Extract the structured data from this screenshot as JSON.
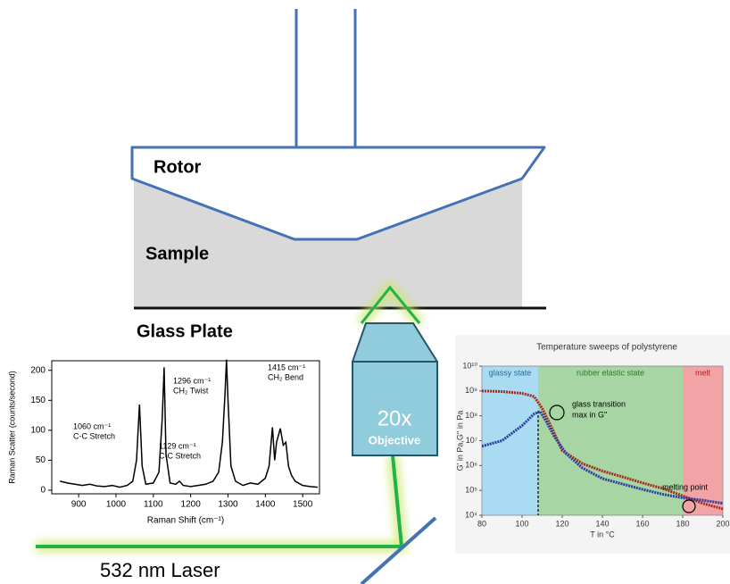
{
  "diagram": {
    "rotor": "Rotor",
    "sample": "Sample",
    "glass_plate": "Glass Plate",
    "magnification": "20x",
    "objective": "Objective",
    "laser": "532 nm Laser"
  },
  "chart_data": [
    {
      "type": "line",
      "x_label": "Raman Shift (cm⁻¹)",
      "y_label": "Raman Scatter (counts/second)",
      "x": [
        850,
        870,
        890,
        910,
        930,
        950,
        970,
        990,
        1010,
        1030,
        1045,
        1055,
        1063,
        1070,
        1080,
        1100,
        1115,
        1124,
        1129,
        1134,
        1145,
        1160,
        1170,
        1180,
        1200,
        1220,
        1240,
        1260,
        1275,
        1285,
        1292,
        1296,
        1300,
        1308,
        1320,
        1340,
        1360,
        1380,
        1400,
        1410,
        1419,
        1425,
        1430,
        1440,
        1448,
        1455,
        1462,
        1470,
        1480,
        1500,
        1520,
        1540
      ],
      "values": [
        15,
        12,
        10,
        8,
        10,
        7,
        6,
        8,
        5,
        8,
        15,
        50,
        143,
        40,
        10,
        12,
        30,
        120,
        205,
        60,
        12,
        10,
        15,
        8,
        6,
        8,
        10,
        15,
        30,
        80,
        160,
        218,
        150,
        40,
        15,
        8,
        12,
        10,
        20,
        40,
        105,
        50,
        80,
        103,
        75,
        80,
        40,
        25,
        15,
        8,
        6,
        5
      ],
      "color": "#000000",
      "xlim": [
        828,
        1545
      ],
      "ylim": [
        -6,
        216
      ],
      "xticks": [
        900,
        1000,
        1100,
        1200,
        1300,
        1400,
        1500
      ],
      "yticks": [
        0,
        50,
        100,
        150,
        200
      ],
      "annotations": [
        [
          "1060 cm⁻¹",
          "C-C Stretch"
        ],
        [
          "1129 cm⁻¹",
          "C-C Stretch"
        ],
        [
          "1296 cm⁻¹",
          "CH₂ Twist"
        ],
        [
          "1415 cm⁻¹",
          "CH₂ Bend"
        ]
      ]
    },
    {
      "type": "line",
      "title": "Temperature sweeps of polystyrene",
      "x_label": "T in °C",
      "y_label": "G' in Pa,G'' in Pa",
      "log_y": true,
      "xlim": [
        80,
        200
      ],
      "ylim": [
        10000,
        10000000000
      ],
      "xticks": [
        80,
        100,
        120,
        140,
        160,
        180,
        200
      ],
      "yticks": [
        {
          "value": 10000,
          "label": "10⁴"
        },
        {
          "value": 100000,
          "label": "10⁵"
        },
        {
          "value": 1000000,
          "label": "10⁶"
        },
        {
          "value": 10000000,
          "label": "10⁷"
        },
        {
          "value": 100000000,
          "label": "10⁸"
        },
        {
          "value": 1000000000,
          "label": "10⁹"
        },
        {
          "value": 10000000000,
          "label": "10¹⁰"
        }
      ],
      "regions": [
        {
          "label": "glassy state",
          "from": 80,
          "to": 108,
          "color": "#a9dbf2"
        },
        {
          "label": "rubber elastic state",
          "from": 108,
          "to": 180,
          "color": "#a7d5a3"
        },
        {
          "label": "melt",
          "from": 180,
          "to": 200,
          "color": "#f2a3a6"
        }
      ],
      "series": [
        {
          "color": "#a8281c",
          "x": [
            80,
            90,
            100,
            106,
            110,
            115,
            120,
            130,
            140,
            150,
            160,
            170,
            180,
            190,
            200
          ],
          "values": [
            1000000000,
            950000000,
            800000000,
            600000000,
            200000000,
            30000000,
            4000000,
            1200000,
            600000,
            350000,
            200000,
            120000,
            60000,
            30000,
            18000
          ]
        },
        {
          "color": "#2a3b9e",
          "x": [
            80,
            90,
            100,
            106,
            109,
            112,
            116,
            122,
            130,
            140,
            150,
            160,
            170,
            180,
            190,
            200
          ],
          "values": [
            6000000,
            10000000,
            40000000,
            120000000,
            150000000,
            60000000,
            15000000,
            3000000,
            800000,
            300000,
            180000,
            110000,
            70000,
            50000,
            40000,
            30000
          ]
        }
      ],
      "annotations": [
        "glass transition",
        "max in G''",
        "melting point"
      ]
    }
  ]
}
